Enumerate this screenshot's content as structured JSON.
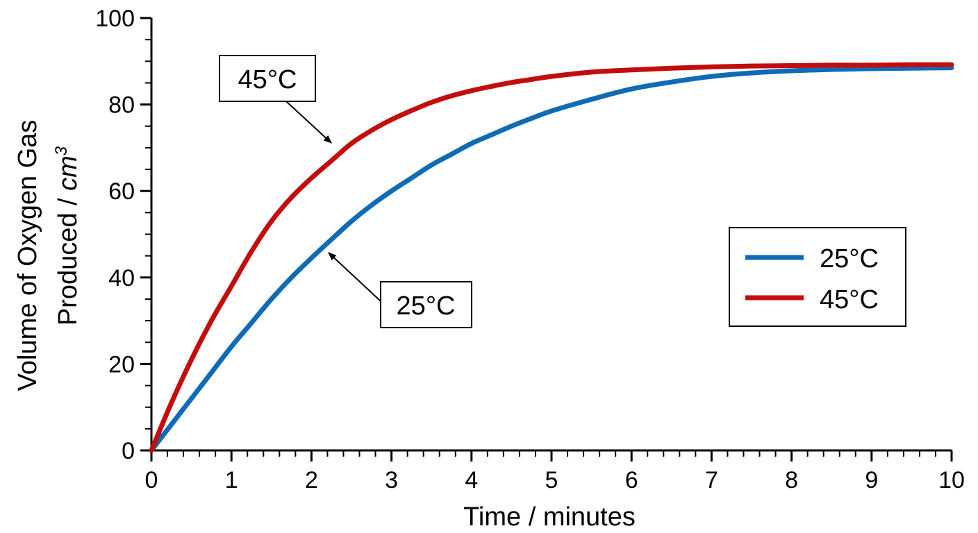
{
  "chart_data": {
    "type": "line",
    "xlabel": "Time / minutes",
    "ylabel_line1": "Volume of Oxygen Gas",
    "ylabel_line2_prefix": "Produced / ",
    "ylabel_unit": "cm",
    "ylabel_unit_sup": "3",
    "xlim": [
      0,
      10
    ],
    "ylim": [
      0,
      100
    ],
    "x_ticks": [
      0,
      1,
      2,
      3,
      4,
      5,
      6,
      7,
      8,
      9,
      10
    ],
    "y_ticks": [
      0,
      20,
      40,
      60,
      80,
      100
    ],
    "grid": false,
    "legend_position": "right",
    "x": [
      0,
      0.25,
      0.5,
      0.75,
      1,
      1.25,
      1.5,
      1.75,
      2,
      2.25,
      2.5,
      2.75,
      3,
      3.25,
      3.5,
      3.75,
      4,
      4.25,
      4.5,
      4.75,
      5,
      5.5,
      6,
      6.5,
      7,
      7.5,
      8,
      8.5,
      9,
      9.5,
      10
    ],
    "series": [
      {
        "name": "25°C",
        "color": "#0f6bb5",
        "values": [
          0,
          6,
          12,
          18,
          24,
          29.5,
          35,
          40,
          44.5,
          48.8,
          53,
          56.7,
          60,
          63,
          66,
          68.5,
          71,
          73,
          75,
          76.8,
          78.5,
          81.2,
          83.6,
          85.2,
          86.5,
          87.3,
          87.8,
          88.1,
          88.3,
          88.4,
          88.5
        ]
      },
      {
        "name": "45°C",
        "color": "#c30d0d",
        "values": [
          0,
          11,
          21,
          30,
          38,
          46,
          53,
          58.5,
          63,
          67,
          71,
          74,
          76.5,
          78.6,
          80.5,
          82,
          83.2,
          84.2,
          85.1,
          85.8,
          86.5,
          87.5,
          88,
          88.4,
          88.7,
          88.9,
          89,
          89.1,
          89.1,
          89.2,
          89.2
        ]
      }
    ],
    "annotations": [
      {
        "text": "45°C",
        "series": "45°C",
        "point_x": 2.3
      },
      {
        "text": "25°C",
        "series": "25°C",
        "point_x": 2.2
      }
    ],
    "legend": {
      "entries": [
        "25°C",
        "45°C"
      ]
    }
  }
}
